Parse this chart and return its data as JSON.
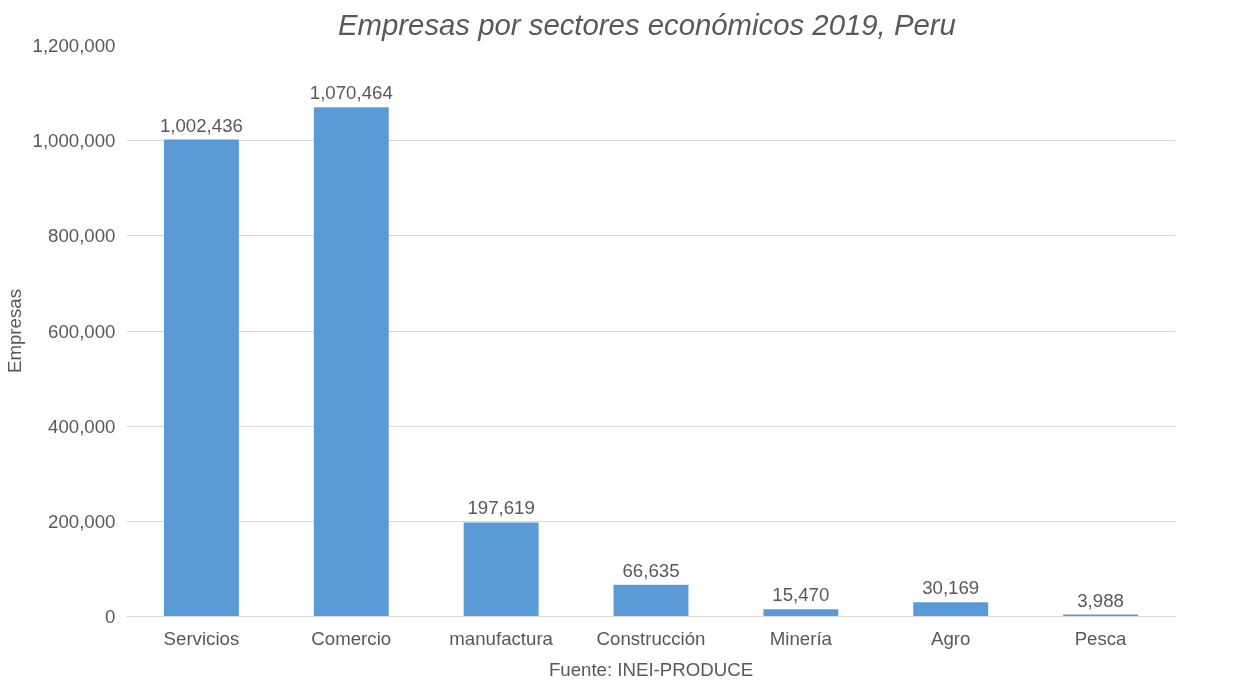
{
  "chart_data": {
    "type": "bar",
    "title": "Empresas por sectores económicos 2019,  Peru",
    "ylabel": "Empresas",
    "categories": [
      "Servicios",
      "Comercio",
      "manufactura",
      "Construcción",
      "Minería",
      "Agro",
      "Pesca"
    ],
    "values": [
      1002436,
      1070464,
      197619,
      66635,
      15470,
      30169,
      3988
    ],
    "color": "#5b9bd5",
    "ylim": [
      0,
      1200000
    ],
    "yticks": [
      {
        "value": 0,
        "label": "0"
      },
      {
        "value": 200000,
        "label": "200,000"
      },
      {
        "value": 400000,
        "label": "400,000"
      },
      {
        "value": 600000,
        "label": "600,000"
      },
      {
        "value": 800000,
        "label": "800,000"
      },
      {
        "value": 1000000,
        "label": "1,000,000"
      },
      {
        "value": 1200000,
        "label": "1,200,000"
      }
    ],
    "grid": "y",
    "value_labels": [
      "1,002,436",
      "1,070,464",
      "197,619",
      "66,635",
      "15,470",
      "30,169",
      "3,988"
    ],
    "annotations": [
      "Fuente: INEI-PRODUCE"
    ]
  }
}
